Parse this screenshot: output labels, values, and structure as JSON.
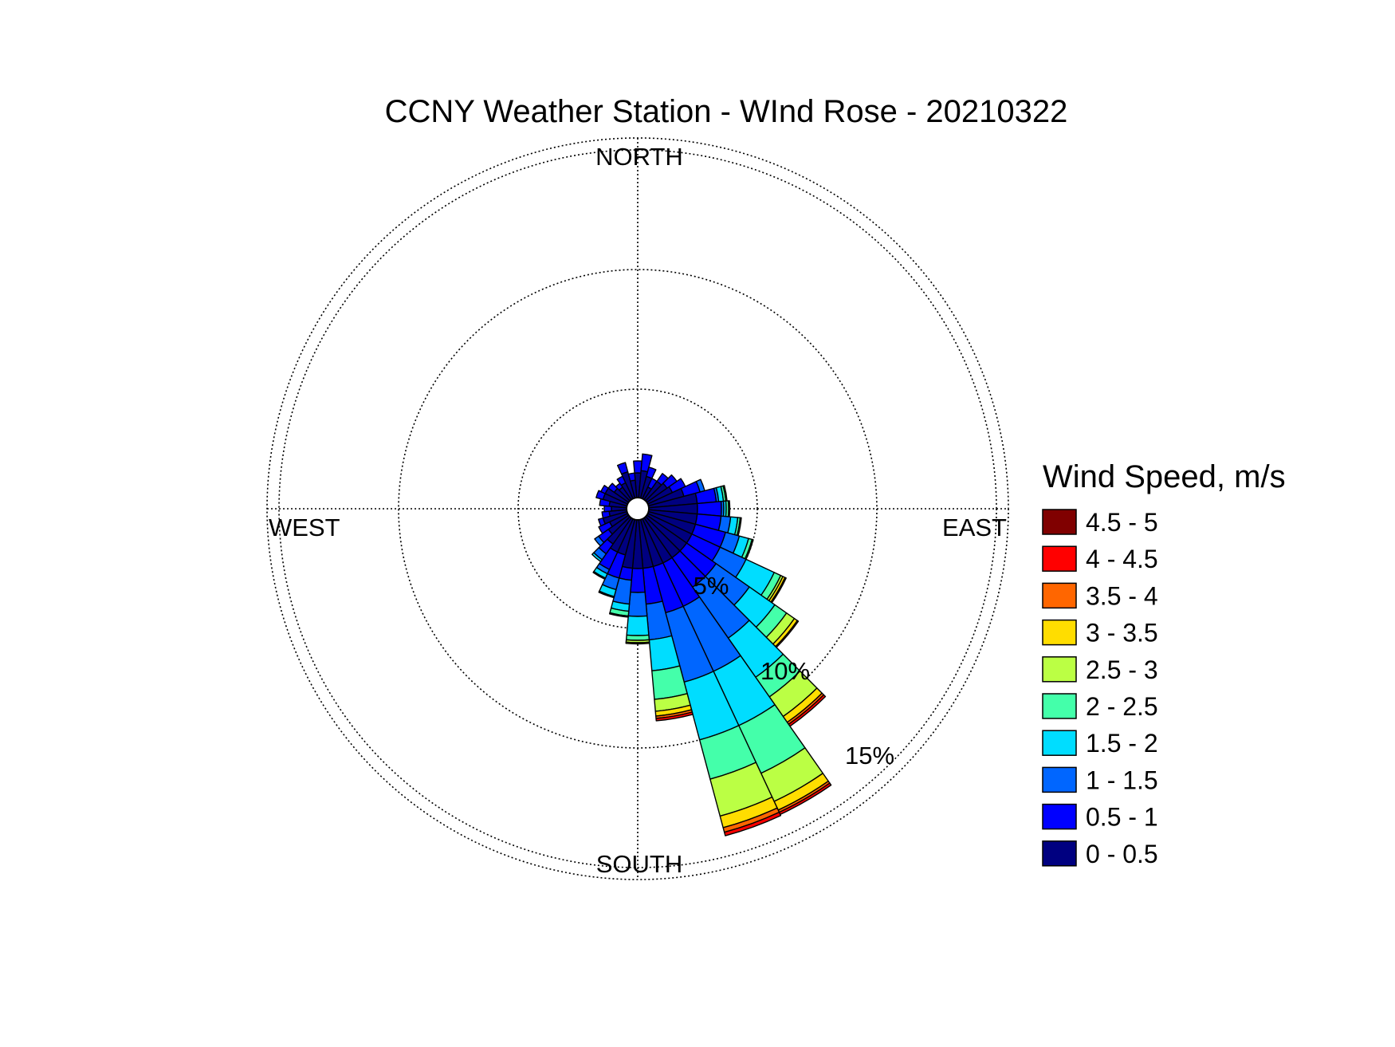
{
  "chart_data": {
    "type": "wind_rose",
    "title": "CCNY Weather Station - WInd Rose - 20210322",
    "directions": {
      "north": "NORTH",
      "south": "SOUTH",
      "east": "EAST",
      "west": "WEST"
    },
    "rings": [
      {
        "value": 5,
        "label": "5%"
      },
      {
        "value": 10,
        "label": "10%"
      },
      {
        "value": 15,
        "label": "15%"
      }
    ],
    "rmax": 15.5,
    "grid": true,
    "legend": {
      "title": "Wind Speed, m/s",
      "placement": "right"
    },
    "speed_bins": [
      {
        "label": "0 - 0.5",
        "color": "#000080"
      },
      {
        "label": "0.5 - 1",
        "color": "#0000ff"
      },
      {
        "label": "1 - 1.5",
        "color": "#0066ff"
      },
      {
        "label": "1.5 - 2",
        "color": "#00ddff"
      },
      {
        "label": "2 - 2.5",
        "color": "#44ffaa"
      },
      {
        "label": "2.5 - 3",
        "color": "#bbff44"
      },
      {
        "label": "3 - 3.5",
        "color": "#ffdd00"
      },
      {
        "label": "3.5 - 4",
        "color": "#ff6600"
      },
      {
        "label": "4 - 4.5",
        "color": "#ff0000"
      },
      {
        "label": "4.5 - 5",
        "color": "#800000"
      }
    ],
    "sector_width_deg": 10,
    "sectors": [
      {
        "dir": 0,
        "cum": [
          1.5,
          2.0
        ]
      },
      {
        "dir": 10,
        "cum": [
          1.6,
          2.3
        ]
      },
      {
        "dir": 20,
        "cum": [
          1.4,
          1.8
        ]
      },
      {
        "dir": 30,
        "cum": [
          1.0,
          1.4
        ]
      },
      {
        "dir": 40,
        "cum": [
          1.4,
          1.8
        ]
      },
      {
        "dir": 50,
        "cum": [
          1.5,
          2.0
        ]
      },
      {
        "dir": 60,
        "cum": [
          1.6,
          2.2
        ]
      },
      {
        "dir": 70,
        "cum": [
          2.0,
          2.7,
          2.9
        ]
      },
      {
        "dir": 80,
        "cum": [
          2.5,
          3.3,
          3.4,
          3.6,
          3.7,
          3.75
        ]
      },
      {
        "dir": 90,
        "cum": [
          2.5,
          3.5,
          3.6,
          3.7,
          3.8,
          3.85
        ]
      },
      {
        "dir": 100,
        "cum": [
          2.5,
          3.5,
          3.9,
          4.2,
          4.3,
          4.35
        ]
      },
      {
        "dir": 110,
        "cum": [
          2.5,
          3.8,
          4.4,
          4.8,
          4.95,
          5.0
        ]
      },
      {
        "dir": 120,
        "cum": [
          2.5,
          3.8,
          5.0,
          6.3,
          6.6,
          6.7,
          6.8,
          6.85
        ]
      },
      {
        "dir": 130,
        "cum": [
          2.5,
          4.0,
          5.7,
          7.0,
          7.6,
          8.0,
          8.15,
          8.2
        ]
      },
      {
        "dir": 140,
        "cum": [
          2.5,
          4.0,
          6.6,
          8.6,
          9.6,
          10.6,
          10.9,
          11.0,
          11.1
        ]
      },
      {
        "dir": 150,
        "cum": [
          2.5,
          4.5,
          7.5,
          10.0,
          12.2,
          13.5,
          13.9,
          14.0,
          14.1
        ]
      },
      {
        "dir": 160,
        "cum": [
          2.5,
          4.5,
          7.5,
          10.0,
          11.7,
          13.3,
          13.8,
          14.0,
          14.15
        ]
      },
      {
        "dir": 170,
        "cum": [
          2.5,
          4.0,
          5.5,
          6.8,
          8.0,
          8.5,
          8.7,
          8.8,
          8.9
        ]
      },
      {
        "dir": 180,
        "cum": [
          2.5,
          3.5,
          4.5,
          5.3,
          5.5,
          5.6,
          5.65
        ]
      },
      {
        "dir": 190,
        "cum": [
          2.5,
          3.0,
          4.0,
          4.3,
          4.5,
          4.55
        ]
      },
      {
        "dir": 200,
        "cum": [
          2.0,
          3.0,
          3.5,
          3.8,
          3.85
        ]
      },
      {
        "dir": 210,
        "cum": [
          2.0,
          2.8,
          3.0,
          3.2,
          3.25
        ]
      },
      {
        "dir": 220,
        "cum": [
          1.8,
          2.3,
          2.6,
          2.7
        ]
      },
      {
        "dir": 230,
        "cum": [
          1.5,
          2.0,
          2.2
        ]
      },
      {
        "dir": 240,
        "cum": [
          1.3,
          1.8
        ]
      },
      {
        "dir": 250,
        "cum": [
          1.5,
          1.7
        ]
      },
      {
        "dir": 260,
        "cum": [
          1.2,
          1.5
        ]
      },
      {
        "dir": 270,
        "cum": [
          1.1,
          1.4
        ]
      },
      {
        "dir": 280,
        "cum": [
          1.2,
          1.6
        ]
      },
      {
        "dir": 290,
        "cum": [
          1.5,
          1.8
        ]
      },
      {
        "dir": 300,
        "cum": [
          1.5,
          1.7
        ]
      },
      {
        "dir": 310,
        "cum": [
          1.2,
          1.5
        ]
      },
      {
        "dir": 320,
        "cum": [
          1.1,
          1.3
        ]
      },
      {
        "dir": 330,
        "cum": [
          1.2,
          1.5
        ]
      },
      {
        "dir": 340,
        "cum": [
          1.6,
          2.0
        ]
      },
      {
        "dir": 350,
        "cum": [
          1.2,
          1.5
        ]
      }
    ]
  }
}
